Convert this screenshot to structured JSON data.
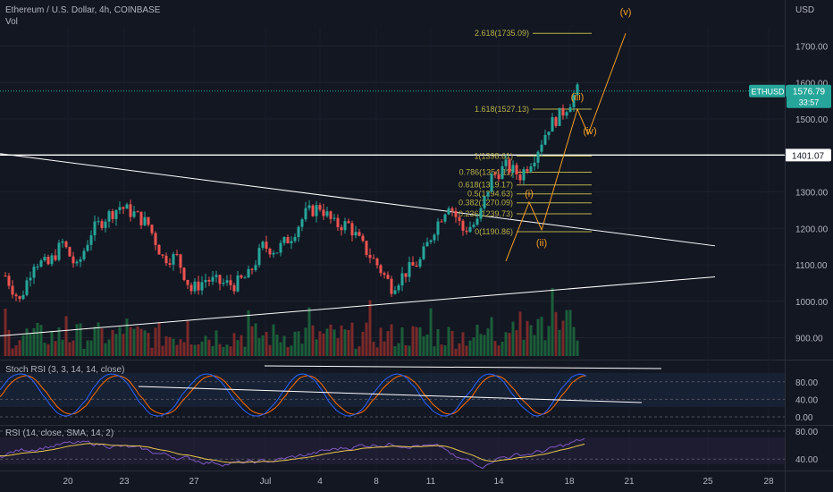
{
  "header": {
    "title": "Ethereum / U.S. Dollar, 4h, COINBASE",
    "vol_label": "Vol",
    "currency": "USD"
  },
  "colors": {
    "background": "#131722",
    "up": "#26a69a",
    "down": "#ef5350",
    "fib": "#b7b04a",
    "wave": "#f29f24",
    "trendline": "#ffffff",
    "stoch_k": "#2962ff",
    "stoch_d": "#ff6d00",
    "rsi_line": "#7e57c2",
    "rsi_ma": "#e6c84b",
    "badge": "#26a69a"
  },
  "chart_data": {
    "type": "candlestick",
    "symbol": "ETHUSD",
    "interval": "4h",
    "ylim": [
      870,
      1800
    ],
    "y_ticks": [
      900,
      1000,
      1100,
      1200,
      1300,
      1400,
      1500,
      1600,
      1700
    ],
    "x_ticks": [
      "20",
      "23",
      "27",
      "Jul",
      "4",
      "8",
      "11",
      "14",
      "18",
      "21",
      "25",
      "28"
    ],
    "price_path": [
      {
        "x": "20",
        "price": 1070
      },
      {
        "x": "20",
        "price": 1000
      },
      {
        "x": "20",
        "price": 1110
      },
      {
        "x": "23",
        "price": 1100
      },
      {
        "x": "23",
        "price": 1160
      },
      {
        "x": "23",
        "price": 1090
      },
      {
        "x": "23",
        "price": 1190
      },
      {
        "x": "23",
        "price": 1230
      },
      {
        "x": "23",
        "price": 1260
      },
      {
        "x": "27",
        "price": 1240
      },
      {
        "x": "27",
        "price": 1210
      },
      {
        "x": "27",
        "price": 1120
      },
      {
        "x": "27",
        "price": 1120
      },
      {
        "x": "27",
        "price": 1030
      },
      {
        "x": "Jul",
        "price": 1060
      },
      {
        "x": "Jul",
        "price": 1050
      },
      {
        "x": "Jul",
        "price": 1045
      },
      {
        "x": "4",
        "price": 1070
      },
      {
        "x": "4",
        "price": 1150
      },
      {
        "x": "4",
        "price": 1140
      },
      {
        "x": "4",
        "price": 1180
      },
      {
        "x": "8",
        "price": 1240
      },
      {
        "x": "8",
        "price": 1260
      },
      {
        "x": "8",
        "price": 1210
      },
      {
        "x": "8",
        "price": 1210
      },
      {
        "x": "11",
        "price": 1150
      },
      {
        "x": "11",
        "price": 1100
      },
      {
        "x": "11",
        "price": 1040
      },
      {
        "x": "11",
        "price": 1080
      },
      {
        "x": "14",
        "price": 1110
      },
      {
        "x": "14",
        "price": 1200
      },
      {
        "x": "14",
        "price": 1270
      },
      {
        "x": "14",
        "price": 1195
      },
      {
        "x": "14",
        "price": 1215
      },
      {
        "x": "14",
        "price": 1340
      },
      {
        "x": "18",
        "price": 1370
      },
      {
        "x": "18",
        "price": 1345
      },
      {
        "x": "18",
        "price": 1400
      },
      {
        "x": "18",
        "price": 1480
      },
      {
        "x": "18",
        "price": 1520
      },
      {
        "x": "18",
        "price": 1576.79
      }
    ],
    "last_price": {
      "symbol": "ETHUSD",
      "value": "1576.79",
      "countdown": "33:57"
    },
    "horizontal_line": {
      "value": "1401.07",
      "price": 1401.07
    },
    "fibonacci": [
      {
        "label": "0(1190.86)",
        "price": 1190.86
      },
      {
        "label": "0.236(1239.73)",
        "price": 1239.73
      },
      {
        "label": "0.382(1270.09)",
        "price": 1270.09
      },
      {
        "label": "0.5(1294.63)",
        "price": 1294.63
      },
      {
        "label": "0.618(1319.17)",
        "price": 1319.17
      },
      {
        "label": "0.786(1354.11)",
        "price": 1354.11
      },
      {
        "label": "1(1398.61)",
        "price": 1398.61
      },
      {
        "label": "1.618(1527.13)",
        "price": 1527.13
      },
      {
        "label": "2.618(1735.09)",
        "price": 1735.09
      }
    ],
    "elliott_waves": [
      {
        "label": "(i)",
        "price": 1272
      },
      {
        "label": "(ii)",
        "price": 1196
      },
      {
        "label": "(iii)",
        "price": 1527
      },
      {
        "label": "(iv)",
        "price": 1458
      },
      {
        "label": "(v)",
        "price": 1735
      }
    ],
    "indicators": [
      {
        "name": "Stoch RSI",
        "label": "Stoch RSI (3, 3, 14, 14, close)",
        "levels": [
          "80.00",
          "40.00",
          "0.00"
        ]
      },
      {
        "name": "RSI",
        "label": "RSI (14, close, SMA, 14, 2)",
        "levels": [
          "80.00",
          "40.00"
        ]
      }
    ]
  }
}
